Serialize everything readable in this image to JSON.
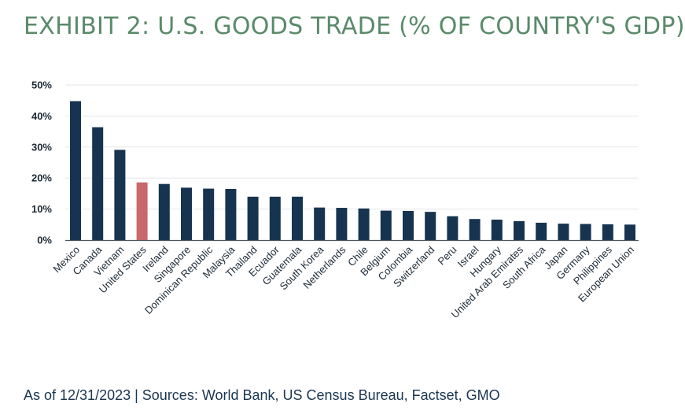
{
  "title": "EXHIBIT 2: U.S. GOODS TRADE (% OF COUNTRY'S GDP)",
  "footnote": "As of 12/31/2023 | Sources: World Bank, US Census Bureau, Factset, GMO",
  "colors": {
    "title": "#5a8a6a",
    "bar": "#16344f",
    "highlight_bar": "#c9686c",
    "grid": "#e3e6ea",
    "axis": "#4a5560",
    "footnote": "#1a3550"
  },
  "chart_data": {
    "type": "bar",
    "title": "EXHIBIT 2: U.S. GOODS TRADE (% OF COUNTRY'S GDP)",
    "xlabel": "",
    "ylabel": "",
    "ylim": [
      0,
      50
    ],
    "yticks": [
      "0%",
      "10%",
      "20%",
      "30%",
      "40%",
      "50%"
    ],
    "grid": true,
    "highlight": "United States",
    "categories": [
      "Mexico",
      "Canada",
      "Vietnam",
      "United States",
      "Ireland",
      "Singapore",
      "Dominican Republic",
      "Malaysia",
      "Thailand",
      "Ecuador",
      "Guatemala",
      "South Korea",
      "Netherlands",
      "Chile",
      "Belgium",
      "Colombia",
      "Switzerland",
      "Peru",
      "Israel",
      "Hungary",
      "United Arab Emirates",
      "South Africa",
      "Japan",
      "Germany",
      "Philippines",
      "European Union"
    ],
    "values": [
      44.8,
      36.4,
      29.1,
      18.6,
      18.1,
      16.9,
      16.6,
      16.5,
      14.0,
      14.0,
      14.0,
      10.5,
      10.4,
      10.2,
      9.5,
      9.4,
      9.1,
      7.7,
      6.8,
      6.6,
      6.1,
      5.6,
      5.3,
      5.2,
      5.1,
      5.0
    ]
  }
}
